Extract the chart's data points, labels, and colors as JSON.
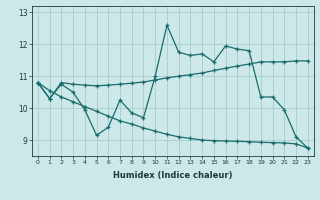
{
  "xlabel": "Humidex (Indice chaleur)",
  "bg_color": "#cce8e8",
  "grid_color": "#aacccc",
  "line_color": "#1a6b6b",
  "xlim": [
    -0.5,
    23.5
  ],
  "ylim": [
    8.5,
    13.2
  ],
  "yticks": [
    9,
    10,
    11,
    12,
    13
  ],
  "xticks": [
    0,
    1,
    2,
    3,
    4,
    5,
    6,
    7,
    8,
    9,
    10,
    11,
    12,
    13,
    14,
    15,
    16,
    17,
    18,
    19,
    20,
    21,
    22,
    23
  ],
  "series": [
    [
      10.8,
      10.3,
      10.75,
      10.5,
      9.95,
      9.15,
      9.4,
      10.25,
      9.85,
      9.7,
      11.0,
      12.6,
      11.75,
      11.65,
      11.7,
      11.45,
      11.95,
      11.85,
      11.8,
      10.35,
      10.35,
      9.95,
      9.1,
      8.75
    ],
    [
      10.8,
      10.3,
      10.8,
      10.75,
      10.72,
      10.7,
      10.72,
      10.75,
      10.78,
      10.82,
      10.88,
      10.95,
      11.0,
      11.05,
      11.1,
      11.18,
      11.25,
      11.32,
      11.38,
      11.45,
      11.45,
      11.45,
      11.48,
      11.48
    ],
    [
      10.8,
      10.55,
      10.35,
      10.2,
      10.05,
      9.9,
      9.75,
      9.6,
      9.5,
      9.38,
      9.28,
      9.18,
      9.1,
      9.05,
      9.0,
      8.98,
      8.97,
      8.96,
      8.95,
      8.93,
      8.92,
      8.91,
      8.88,
      8.75
    ]
  ]
}
